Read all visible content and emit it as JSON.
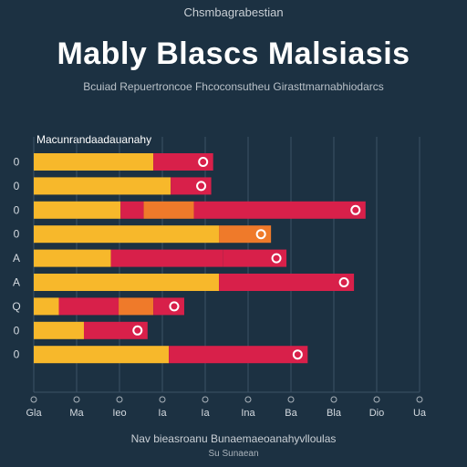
{
  "chart_data": {
    "type": "bar",
    "orientation": "horizontal",
    "stacked": true,
    "top_label": "Chsmbagrabestian",
    "title": "Mably Blascs Malsiasis",
    "subtitle": "Bcuiad Repuertroncoe Fhcoconsutheu Girasttmarnabhiodarcs",
    "legend_label": "Macunrandaadauanahy",
    "xlabel": "Nav bieasroanu Bunaemaeoanahyvlloulas",
    "footnote": "Su Sunaean",
    "categories": [
      "0",
      "0",
      "0",
      "0",
      "A",
      "A",
      "Q",
      "0",
      "0"
    ],
    "xlim": [
      0,
      20
    ],
    "x_ticks": [
      "Gla",
      "Ma",
      "Ieo",
      "Ia",
      "Ia",
      "Ina",
      "Ba",
      "Bla",
      "Dio",
      "Ua"
    ],
    "grid": true,
    "colors": {
      "yellow": "#f7b82b",
      "red": "#d8204a",
      "orange": "#ef7a2a",
      "marker": "#ffffff"
    },
    "series": [
      {
        "color": "yellow",
        "values": [
          6.2,
          7.1,
          4.5,
          9.6,
          4.0,
          9.6,
          1.3,
          2.6,
          7.0
        ]
      },
      {
        "color": "red",
        "values": [
          3.1,
          2.1,
          1.2,
          0.0,
          5.8,
          0.0,
          3.1,
          0.0,
          7.2
        ]
      },
      {
        "color": "orange",
        "values": [
          0.0,
          0.0,
          2.6,
          2.7,
          0.0,
          0.0,
          1.8,
          0.0,
          0.0
        ]
      },
      {
        "color": "red",
        "values": [
          0.0,
          0.0,
          8.9,
          0.0,
          3.3,
          7.0,
          1.6,
          3.3,
          0.0
        ]
      }
    ]
  }
}
